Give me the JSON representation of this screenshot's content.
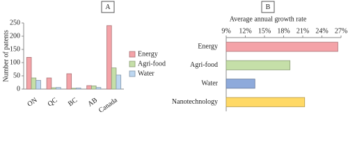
{
  "chart_data": [
    {
      "type": "bar",
      "label": "A",
      "ylabel": "Number of patents",
      "categories": [
        "ON",
        "QC",
        "BC",
        "AB",
        "Canada"
      ],
      "series": [
        {
          "name": "Energy",
          "color": "#f4a3a8",
          "values": [
            120,
            42,
            58,
            13,
            240
          ]
        },
        {
          "name": "Agri-food",
          "color": "#c5dfa8",
          "values": [
            42,
            5,
            3,
            12,
            80
          ]
        },
        {
          "name": "Water",
          "color": "#bdd7f1",
          "values": [
            33,
            6,
            4,
            6,
            53
          ]
        }
      ],
      "ylim": [
        0,
        250
      ],
      "yticks": [
        0,
        50,
        100,
        150,
        200,
        250
      ],
      "grid": false,
      "legend": "right"
    },
    {
      "type": "barh",
      "label": "B",
      "title": "Average annual growth rate",
      "categories": [
        "Energy",
        "Agri-food",
        "Water",
        "Nanotechnology"
      ],
      "values": [
        26.5,
        19,
        13.5,
        21.3
      ],
      "colors": [
        "#f4a3a8",
        "#c5dfa8",
        "#8eaadb",
        "#ffd966"
      ],
      "xlim": [
        9,
        27
      ],
      "xticks": [
        {
          "value": 9,
          "label": "9%"
        },
        {
          "value": 12,
          "label": "12%"
        },
        {
          "value": 15,
          "label": "15%"
        },
        {
          "value": 18,
          "label": "18%"
        },
        {
          "value": 21,
          "label": "21%"
        },
        {
          "value": 24,
          "label": "24%"
        },
        {
          "value": 27,
          "label": "27%"
        }
      ],
      "grid": false
    }
  ]
}
